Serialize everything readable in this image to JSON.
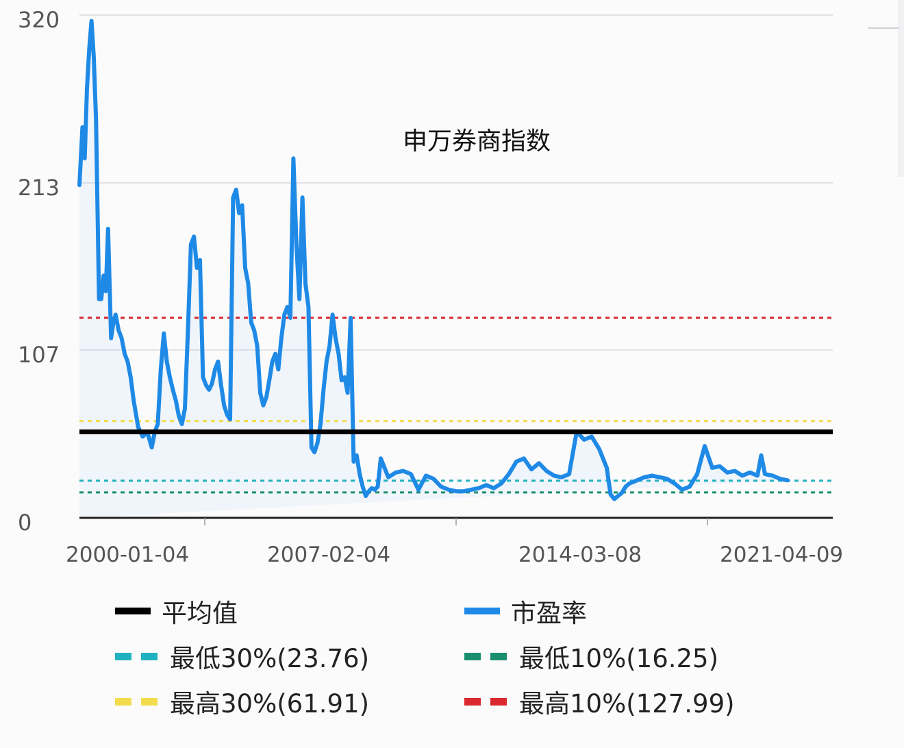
{
  "chart_data": {
    "type": "line",
    "title": "申万券商指数",
    "xlabel": "",
    "ylabel": "",
    "ylim": [
      0,
      320
    ],
    "y_ticks": [
      "0",
      "107",
      "213",
      "320"
    ],
    "x_ticks": [
      "2000-01-04",
      "2007-02-04",
      "2014-03-08",
      "2021-04-09"
    ],
    "grid": true,
    "legend_position": "bottom",
    "series": [
      {
        "name": "市盈率",
        "color": "#1f8ae6",
        "x_frac": [
          0.0,
          0.004,
          0.007,
          0.01,
          0.013,
          0.016,
          0.019,
          0.022,
          0.026,
          0.029,
          0.032,
          0.035,
          0.038,
          0.042,
          0.045,
          0.048,
          0.052,
          0.056,
          0.06,
          0.064,
          0.068,
          0.072,
          0.078,
          0.084,
          0.09,
          0.096,
          0.1,
          0.104,
          0.108,
          0.112,
          0.116,
          0.12,
          0.124,
          0.128,
          0.132,
          0.136,
          0.14,
          0.144,
          0.148,
          0.152,
          0.156,
          0.16,
          0.164,
          0.168,
          0.172,
          0.176,
          0.18,
          0.184,
          0.188,
          0.192,
          0.196,
          0.2,
          0.204,
          0.208,
          0.212,
          0.216,
          0.22,
          0.224,
          0.228,
          0.232,
          0.236,
          0.24,
          0.244,
          0.248,
          0.252,
          0.256,
          0.26,
          0.264,
          0.268,
          0.272,
          0.276,
          0.28,
          0.284,
          0.288,
          0.292,
          0.296,
          0.3,
          0.304,
          0.308,
          0.312,
          0.316,
          0.32,
          0.324,
          0.328,
          0.332,
          0.336,
          0.34,
          0.344,
          0.348,
          0.352,
          0.356,
          0.36,
          0.364,
          0.368,
          0.372,
          0.376,
          0.38,
          0.384,
          0.388,
          0.392,
          0.396,
          0.4,
          0.41,
          0.42,
          0.43,
          0.44,
          0.45,
          0.46,
          0.47,
          0.48,
          0.49,
          0.5,
          0.51,
          0.52,
          0.53,
          0.54,
          0.55,
          0.56,
          0.57,
          0.58,
          0.59,
          0.6,
          0.61,
          0.62,
          0.63,
          0.64,
          0.65,
          0.66,
          0.67,
          0.68,
          0.69,
          0.7,
          0.705,
          0.71,
          0.715,
          0.72,
          0.725,
          0.73,
          0.74,
          0.75,
          0.76,
          0.77,
          0.78,
          0.79,
          0.8,
          0.81,
          0.82,
          0.83,
          0.84,
          0.85,
          0.86,
          0.87,
          0.88,
          0.89,
          0.9,
          0.905,
          0.91,
          0.92,
          0.93,
          0.94,
          0.95,
          0.96,
          0.965,
          0.97,
          0.98,
          0.99,
          1.0
        ],
        "values": [
          213,
          250,
          230,
          275,
          300,
          318,
          295,
          255,
          140,
          140,
          155,
          145,
          185,
          115,
          125,
          130,
          120,
          115,
          105,
          100,
          90,
          75,
          58,
          52,
          55,
          45,
          55,
          60,
          95,
          118,
          100,
          90,
          82,
          75,
          65,
          60,
          70,
          120,
          175,
          180,
          160,
          165,
          90,
          85,
          82,
          86,
          95,
          100,
          85,
          72,
          66,
          63,
          205,
          210,
          195,
          200,
          160,
          150,
          125,
          120,
          110,
          80,
          72,
          77,
          88,
          100,
          105,
          95,
          115,
          130,
          135,
          128,
          230,
          175,
          140,
          205,
          150,
          135,
          45,
          42,
          48,
          60,
          82,
          100,
          110,
          130,
          115,
          105,
          88,
          90,
          80,
          128,
          36,
          40,
          28,
          20,
          14,
          17,
          19,
          18,
          20,
          38,
          26,
          29,
          30,
          28,
          18,
          27,
          25,
          20,
          18,
          17,
          17,
          18,
          19,
          21,
          19,
          22,
          28,
          36,
          38,
          31,
          35,
          30,
          27,
          26,
          28,
          55,
          50,
          52,
          44,
          32,
          15,
          12,
          14,
          16,
          20,
          22,
          24,
          26,
          27,
          26,
          25,
          22,
          18,
          20,
          28,
          46,
          32,
          33,
          29,
          30,
          27,
          29,
          27,
          40,
          28,
          27,
          25,
          24
        ]
      },
      {
        "name": "平均值",
        "color": "#000000",
        "value": 55.0,
        "style": "solid"
      },
      {
        "name": "最低30%(23.76)",
        "color": "#20b2c0",
        "value": 23.76,
        "style": "dashed"
      },
      {
        "name": "最低10%(16.25)",
        "color": "#1a8f70",
        "value": 16.25,
        "style": "dashed"
      },
      {
        "name": "最高30%(61.91)",
        "color": "#f2dc4b",
        "value": 61.91,
        "style": "dashed"
      },
      {
        "name": "最高10%(127.99)",
        "color": "#d9282f",
        "value": 127.99,
        "style": "dashed"
      }
    ]
  },
  "chart": {
    "title": "申万券商指数",
    "y_ticks": [
      "320",
      "213",
      "107",
      "0"
    ],
    "x_ticks": [
      "2000-01-04",
      "2007-02-04",
      "2014-03-08",
      "2021-04-09"
    ]
  },
  "legend": {
    "items": [
      {
        "label": "平均值",
        "color": "#000000",
        "style": "solid"
      },
      {
        "label": "市盈率",
        "color": "#1f8ae6",
        "style": "solid"
      },
      {
        "label": "最低30%(23.76)",
        "color": "#20b2c0",
        "style": "dashed"
      },
      {
        "label": "最低10%(16.25)",
        "color": "#1a8f70",
        "style": "dashed"
      },
      {
        "label": "最高30%(61.91)",
        "color": "#f2dc4b",
        "style": "dashed"
      },
      {
        "label": "最高10%(127.99)",
        "color": "#d9282f",
        "style": "dashed"
      }
    ]
  }
}
